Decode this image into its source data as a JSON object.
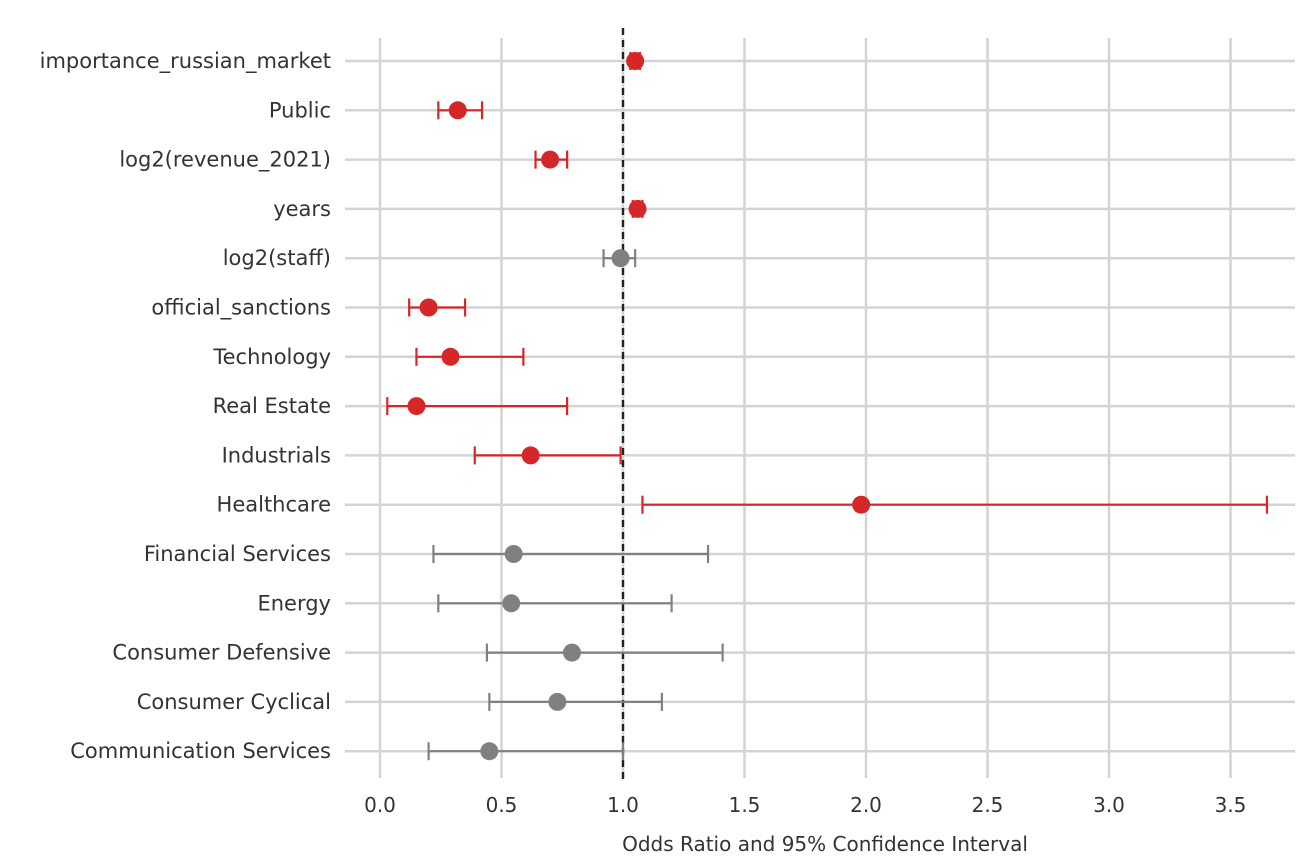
{
  "chart_data": {
    "type": "forest",
    "xlabel": "Odds Ratio and 95% Confidence Interval",
    "xlim": [
      -0.15,
      3.8
    ],
    "xticks": [
      0.0,
      0.5,
      1.0,
      1.5,
      2.0,
      2.5,
      3.0,
      3.5
    ],
    "xtick_labels": [
      "0.0",
      "0.5",
      "1.0",
      "1.5",
      "2.0",
      "2.5",
      "3.0",
      "3.5"
    ],
    "reference_line": 1.0,
    "grid": true,
    "colors": {
      "significant": "#d62728",
      "not_significant": "#808080",
      "grid": "#d4d4d4",
      "reference": "#222222"
    },
    "points": [
      {
        "label": "importance_russian_market",
        "or": 1.05,
        "lower": 1.03,
        "upper": 1.07,
        "significant": true
      },
      {
        "label": "Public",
        "or": 0.32,
        "lower": 0.24,
        "upper": 0.42,
        "significant": true
      },
      {
        "label": "log2(revenue_2021)",
        "or": 0.7,
        "lower": 0.64,
        "upper": 0.77,
        "significant": true
      },
      {
        "label": "years",
        "or": 1.06,
        "lower": 1.04,
        "upper": 1.08,
        "significant": true
      },
      {
        "label": "log2(staff)",
        "or": 0.99,
        "lower": 0.92,
        "upper": 1.05,
        "significant": false
      },
      {
        "label": "official_sanctions",
        "or": 0.2,
        "lower": 0.12,
        "upper": 0.35,
        "significant": true
      },
      {
        "label": "Technology",
        "or": 0.29,
        "lower": 0.15,
        "upper": 0.59,
        "significant": true
      },
      {
        "label": "Real Estate",
        "or": 0.15,
        "lower": 0.03,
        "upper": 0.77,
        "significant": true
      },
      {
        "label": "Industrials",
        "or": 0.62,
        "lower": 0.39,
        "upper": 0.99,
        "significant": true
      },
      {
        "label": "Healthcare",
        "or": 1.98,
        "lower": 1.08,
        "upper": 3.65,
        "significant": true
      },
      {
        "label": "Financial Services",
        "or": 0.55,
        "lower": 0.22,
        "upper": 1.35,
        "significant": false
      },
      {
        "label": "Energy",
        "or": 0.54,
        "lower": 0.24,
        "upper": 1.2,
        "significant": false
      },
      {
        "label": "Consumer Defensive",
        "or": 0.79,
        "lower": 0.44,
        "upper": 1.41,
        "significant": false
      },
      {
        "label": "Consumer Cyclical",
        "or": 0.73,
        "lower": 0.45,
        "upper": 1.16,
        "significant": false
      },
      {
        "label": "Communication Services",
        "or": 0.45,
        "lower": 0.2,
        "upper": 1.0,
        "significant": false
      }
    ]
  }
}
